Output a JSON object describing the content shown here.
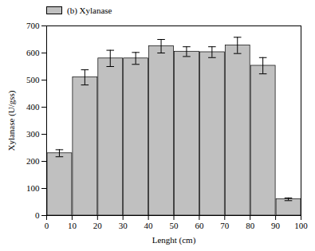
{
  "chart_data": {
    "type": "bar",
    "xlabel": "Lenght (cm)",
    "ylabel": "Xylanase (U/gss)",
    "x": [
      5,
      15,
      25,
      35,
      45,
      55,
      65,
      75,
      85,
      95
    ],
    "series": [
      {
        "name": "(b) Xylanase",
        "color": "#c0c0c0",
        "values": [
          230,
          510,
          580,
          580,
          625,
          605,
          603,
          628,
          553,
          60
        ],
        "errors": [
          13,
          28,
          30,
          22,
          25,
          18,
          20,
          30,
          30,
          5
        ]
      }
    ],
    "xlim": [
      0,
      100
    ],
    "xticks": [
      0,
      10,
      20,
      30,
      40,
      50,
      60,
      70,
      80,
      90,
      100
    ],
    "ylim": [
      0,
      700
    ],
    "yticks": [
      0,
      100,
      200,
      300,
      400,
      500,
      600,
      700
    ],
    "legend": "upper left"
  }
}
